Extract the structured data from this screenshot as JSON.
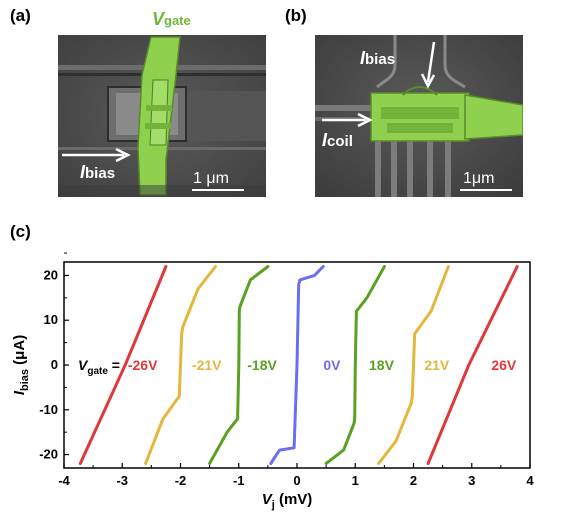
{
  "panels": {
    "a": {
      "label": "(a)",
      "gate_label_main": "V",
      "gate_label_sub": "gate",
      "bias_label_main": "I",
      "bias_label_sub": "bias",
      "scale_bar": "1 μm"
    },
    "b": {
      "label": "(b)",
      "bias_label_main": "I",
      "bias_label_sub": "bias",
      "coil_label_main": "I",
      "coil_label_sub": "coil",
      "scale_bar": "1μm"
    },
    "c": {
      "label": "(c)"
    }
  },
  "colors": {
    "red": "#e0373a",
    "yellow": "#e3b63c",
    "green": "#5aa022",
    "blue": "#6b6ef0",
    "sem_gate": "#8fd14f"
  },
  "chart_data": {
    "type": "line",
    "xlabel_main": "V",
    "xlabel_sub": "j",
    "xlabel_unit": " (mV)",
    "ylabel_main": "I",
    "ylabel_sub": "bias",
    "ylabel_unit": " (μA)",
    "xlim": [
      -4,
      4
    ],
    "ylim": [
      -23,
      23
    ],
    "x_ticks": [
      "-4",
      "-3",
      "-2",
      "-1",
      "0",
      "1",
      "2",
      "3",
      "4"
    ],
    "y_ticks": [
      "20",
      "10",
      "0",
      "-10",
      "-20"
    ],
    "vgate_prefix_main": "V",
    "vgate_prefix_sub": "gate",
    "vgate_prefix_eq": " =",
    "series": [
      {
        "name": "-26V",
        "color": "red",
        "x": [
          -3.72,
          -2.95,
          -2.25
        ],
        "y": [
          -22,
          0,
          22
        ]
      },
      {
        "name": "-21V",
        "color": "yellow",
        "x": [
          -2.6,
          -2.3,
          -2.02,
          -2.0,
          -1.98,
          -1.96,
          -1.7,
          -1.4
        ],
        "y": [
          -22,
          -12,
          -7,
          0,
          7,
          8.5,
          17,
          22
        ]
      },
      {
        "name": "-18V",
        "color": "green",
        "x": [
          -1.5,
          -1.2,
          -1.02,
          -1.0,
          -0.99,
          -0.98,
          -0.8,
          -0.5
        ],
        "y": [
          -22,
          -15,
          -12,
          0,
          12,
          13,
          19,
          22
        ]
      },
      {
        "name": "0V",
        "color": "blue",
        "x": [
          -0.45,
          -0.3,
          -0.05,
          0.0,
          0.03,
          0.05,
          0.3,
          0.45
        ],
        "y": [
          -22,
          -19,
          -18.5,
          0,
          18,
          19,
          20,
          22
        ]
      },
      {
        "name": "18V",
        "color": "green",
        "x": [
          0.5,
          0.8,
          0.98,
          0.99,
          1.0,
          1.02,
          1.2,
          1.5
        ],
        "y": [
          -22,
          -19,
          -13,
          -12,
          0,
          12,
          15,
          22
        ]
      },
      {
        "name": "21V",
        "color": "yellow",
        "x": [
          1.4,
          1.7,
          1.96,
          1.98,
          2.0,
          2.02,
          2.3,
          2.6
        ],
        "y": [
          -22,
          -17,
          -8.5,
          -7,
          0,
          7,
          12,
          22
        ]
      },
      {
        "name": "26V",
        "color": "red",
        "x": [
          2.25,
          2.95,
          3.78
        ],
        "y": [
          -22,
          0,
          22
        ]
      }
    ]
  }
}
